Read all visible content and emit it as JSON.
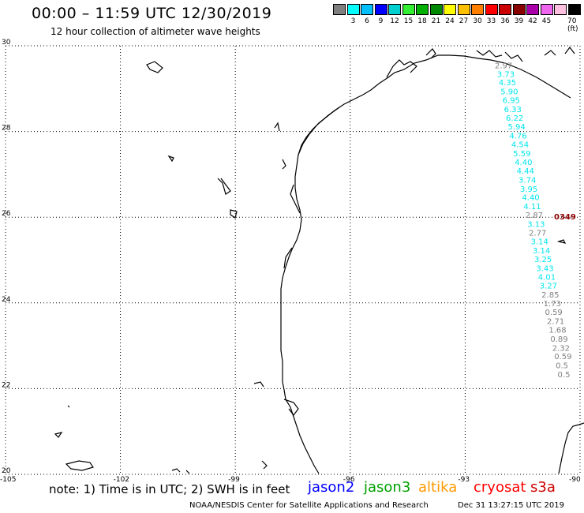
{
  "header": {
    "title": "00:00 – 11:59 UTC 12/30/2019",
    "subtitle": "12 hour collection of altimeter wave heights"
  },
  "legend": {
    "unit": "70 (ft)",
    "items": [
      {
        "label": "",
        "color": "#7f7f7f"
      },
      {
        "label": "3",
        "color": "#00ffff"
      },
      {
        "label": "6",
        "color": "#00bfff"
      },
      {
        "label": "9",
        "color": "#0000ff"
      },
      {
        "label": "12",
        "color": "#00cfcf"
      },
      {
        "label": "15",
        "color": "#33ee33"
      },
      {
        "label": "18",
        "color": "#00b000"
      },
      {
        "label": "21",
        "color": "#008800"
      },
      {
        "label": "24",
        "color": "#ffff00"
      },
      {
        "label": "27",
        "color": "#ffc000"
      },
      {
        "label": "30",
        "color": "#ff8000"
      },
      {
        "label": "33",
        "color": "#ff0000"
      },
      {
        "label": "36",
        "color": "#cc0000"
      },
      {
        "label": "39",
        "color": "#880000"
      },
      {
        "label": "42",
        "color": "#aa00aa"
      },
      {
        "label": "45",
        "color": "#ee66ee"
      },
      {
        "label": "",
        "color": "#ffc0e0"
      },
      {
        "label": "",
        "color": "#000000"
      }
    ]
  },
  "map": {
    "lat_labels": [
      "30",
      "28",
      "26",
      "24",
      "22",
      "20"
    ],
    "lat_values": [
      30,
      28,
      26,
      24,
      22,
      20
    ],
    "lon_labels": [
      "-105",
      "-102",
      "-99",
      "-96",
      "-93",
      "-90"
    ],
    "lon_values": [
      -105,
      -102,
      -99,
      -96,
      -93,
      -90
    ],
    "lon_range": [
      -105,
      -90
    ],
    "lat_range": [
      20,
      30
    ],
    "grid": "dotted",
    "track_label": "0349",
    "track_label_color": "#8b0000",
    "wave_heights": [
      {
        "lon": -92.02,
        "lat": 29.55,
        "swh": "2.97",
        "color": "#808080"
      },
      {
        "lon": -91.96,
        "lat": 29.35,
        "swh": "3.73",
        "color": "#00e5ee"
      },
      {
        "lon": -91.92,
        "lat": 29.15,
        "swh": "4.35",
        "color": "#00e5ee"
      },
      {
        "lon": -91.87,
        "lat": 28.94,
        "swh": "5.90",
        "color": "#00e5ee"
      },
      {
        "lon": -91.82,
        "lat": 28.74,
        "swh": "6.95",
        "color": "#00e5ee"
      },
      {
        "lon": -91.78,
        "lat": 28.53,
        "swh": "6.33",
        "color": "#00e5ee"
      },
      {
        "lon": -91.73,
        "lat": 28.32,
        "swh": "6.22",
        "color": "#00e5ee"
      },
      {
        "lon": -91.68,
        "lat": 28.12,
        "swh": "5.94",
        "color": "#00e5ee"
      },
      {
        "lon": -91.64,
        "lat": 27.91,
        "swh": "4.76",
        "color": "#00e5ee"
      },
      {
        "lon": -91.59,
        "lat": 27.71,
        "swh": "4.54",
        "color": "#00e5ee"
      },
      {
        "lon": -91.54,
        "lat": 27.5,
        "swh": "5.59",
        "color": "#00e5ee"
      },
      {
        "lon": -91.5,
        "lat": 27.29,
        "swh": "4.40",
        "color": "#00e5ee"
      },
      {
        "lon": -91.45,
        "lat": 27.09,
        "swh": "4.44",
        "color": "#00e5ee"
      },
      {
        "lon": -91.4,
        "lat": 26.88,
        "swh": "3.74",
        "color": "#00e5ee"
      },
      {
        "lon": -91.36,
        "lat": 26.67,
        "swh": "3.95",
        "color": "#00e5ee"
      },
      {
        "lon": -91.31,
        "lat": 26.47,
        "swh": "4.40",
        "color": "#00e5ee"
      },
      {
        "lon": -91.27,
        "lat": 26.26,
        "swh": "4.11",
        "color": "#00e5ee"
      },
      {
        "lon": -91.22,
        "lat": 26.06,
        "swh": "2.87",
        "color": "#808080"
      },
      {
        "lon": -91.17,
        "lat": 25.85,
        "swh": "3.13",
        "color": "#00e5ee"
      },
      {
        "lon": -91.13,
        "lat": 25.64,
        "swh": "2.77",
        "color": "#808080"
      },
      {
        "lon": -91.08,
        "lat": 25.44,
        "swh": "3.14",
        "color": "#00e5ee"
      },
      {
        "lon": -91.03,
        "lat": 25.23,
        "swh": "3.14",
        "color": "#00e5ee"
      },
      {
        "lon": -90.99,
        "lat": 25.03,
        "swh": "3.25",
        "color": "#00e5ee"
      },
      {
        "lon": -90.94,
        "lat": 24.82,
        "swh": "3.43",
        "color": "#00e5ee"
      },
      {
        "lon": -90.89,
        "lat": 24.61,
        "swh": "4.01",
        "color": "#00e5ee"
      },
      {
        "lon": -90.85,
        "lat": 24.41,
        "swh": "3.27",
        "color": "#00e5ee"
      },
      {
        "lon": -90.8,
        "lat": 24.2,
        "swh": "2.85",
        "color": "#808080"
      },
      {
        "lon": -90.75,
        "lat": 24.0,
        "swh": "1.73",
        "color": "#808080"
      },
      {
        "lon": -90.71,
        "lat": 23.79,
        "swh": "0.59",
        "color": "#808080"
      },
      {
        "lon": -90.66,
        "lat": 23.58,
        "swh": "2.71",
        "color": "#808080"
      },
      {
        "lon": -90.61,
        "lat": 23.38,
        "swh": "1.68",
        "color": "#808080"
      },
      {
        "lon": -90.57,
        "lat": 23.17,
        "swh": "0.89",
        "color": "#808080"
      },
      {
        "lon": -90.52,
        "lat": 22.96,
        "swh": "2.32",
        "color": "#808080"
      },
      {
        "lon": -90.47,
        "lat": 22.76,
        "swh": "0.59",
        "color": "#808080"
      },
      {
        "lon": -90.43,
        "lat": 22.55,
        "swh": "0.5",
        "color": "#808080"
      },
      {
        "lon": -90.38,
        "lat": 22.34,
        "swh": "0.5",
        "color": "#808080"
      }
    ]
  },
  "note": "note: 1) Time is in UTC; 2) SWH is in feet",
  "satellites": [
    {
      "name": "jason2",
      "color": "#0000ff"
    },
    {
      "name": "jason3",
      "color": "#00a000"
    },
    {
      "name": "altika",
      "color": "#ff9900"
    },
    {
      "name": "cryosat",
      "color": "#ff0000"
    },
    {
      "name": "s3a",
      "color": "#cc0000"
    }
  ],
  "footer": {
    "credit": "NOAA/NESDIS Center for Satellite Applications and Research",
    "timestamp": "Dec 31 13:27:15 UTC 2019"
  }
}
